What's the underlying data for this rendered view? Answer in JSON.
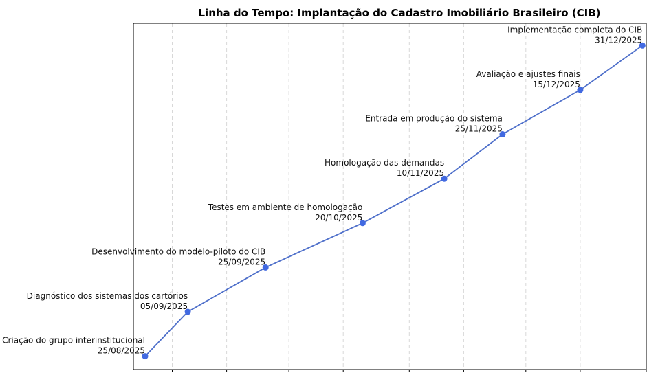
{
  "chart_data": {
    "type": "line",
    "title": "Linha do Tempo: Implantação do Cadastro Imobiliário Brasileiro (CIB)",
    "xlabel": "",
    "ylabel": "",
    "x_axis": {
      "type": "date",
      "range": [
        "2025-08-22",
        "2026-01-01"
      ],
      "tick_labels_visible": false
    },
    "y_axis": {
      "type": "index",
      "range": [
        -0.3,
        7.5
      ],
      "visible": false
    },
    "grid": "vertical-dashed",
    "colors": {
      "line": "#4e6fca",
      "marker": "#4169e1",
      "grid": "#d8d8d8"
    },
    "series": [
      {
        "name": "",
        "points": [
          {
            "x": "2025-08-25",
            "y": 0,
            "label": "Criação do grupo interinstitucional",
            "date_label": "25/08/2025"
          },
          {
            "x": "2025-09-05",
            "y": 1,
            "label": "Diagnóstico dos sistemas dos cartórios",
            "date_label": "05/09/2025"
          },
          {
            "x": "2025-09-25",
            "y": 2,
            "label": "Desenvolvimento do modelo-piloto do CIB",
            "date_label": "25/09/2025"
          },
          {
            "x": "2025-10-20",
            "y": 3,
            "label": "Testes em ambiente de homologação",
            "date_label": "20/10/2025"
          },
          {
            "x": "2025-11-10",
            "y": 4,
            "label": "Homologação das demandas",
            "date_label": "10/11/2025"
          },
          {
            "x": "2025-11-25",
            "y": 5,
            "label": "Entrada em produção do sistema",
            "date_label": "25/11/2025"
          },
          {
            "x": "2025-12-15",
            "y": 6,
            "label": "Avaliação e ajustes finais",
            "date_label": "15/12/2025"
          },
          {
            "x": "2025-12-31",
            "y": 7,
            "label": "Implementação completa do CIB",
            "date_label": "31/12/2025"
          }
        ]
      }
    ],
    "x_ticks": [
      "2025-09-01",
      "2025-09-15",
      "2025-10-01",
      "2025-10-15",
      "2025-11-01",
      "2025-11-15",
      "2025-12-01",
      "2025-12-15",
      "2026-01-01"
    ]
  }
}
